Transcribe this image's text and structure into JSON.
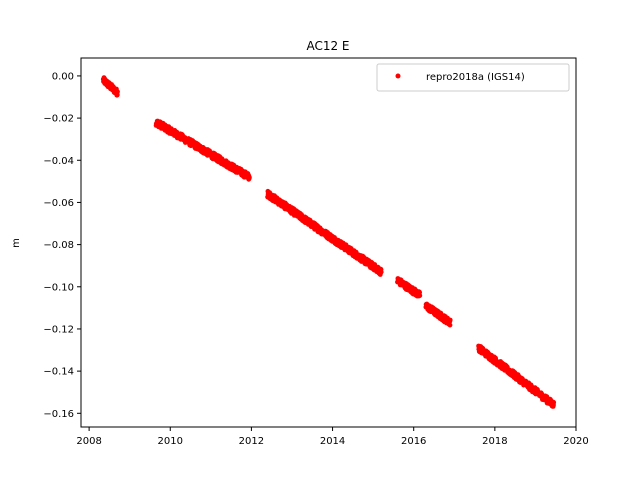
{
  "chart_data": {
    "type": "scatter",
    "title": "AC12 E",
    "xlabel": "",
    "ylabel": "m",
    "xlim": [
      2007.8,
      2020.0
    ],
    "ylim": [
      -0.1665,
      0.0085
    ],
    "xticks": [
      2008,
      2010,
      2012,
      2014,
      2016,
      2018,
      2020
    ],
    "yticks": [
      0.0,
      -0.02,
      -0.04,
      -0.06,
      -0.08,
      -0.1,
      -0.12,
      -0.14,
      -0.16
    ],
    "xtick_labels": [
      "2008",
      "2010",
      "2012",
      "2014",
      "2016",
      "2018",
      "2020"
    ],
    "ytick_labels": [
      "0.00",
      "−0.02",
      "−0.04",
      "−0.06",
      "−0.08",
      "−0.10",
      "−0.12",
      "−0.14",
      "−0.16"
    ],
    "grid": false,
    "legend": {
      "position": "top-right"
    },
    "series": [
      {
        "name": "repro2018a (IGS14)",
        "color": "#ff0000",
        "marker": "circle",
        "segments": [
          {
            "x_start": 2008.35,
            "x_end": 2008.7,
            "y_start": -0.002,
            "y_end": -0.008
          },
          {
            "x_start": 2009.65,
            "x_end": 2011.95,
            "y_start": -0.022,
            "y_end": -0.048
          },
          {
            "x_start": 2012.4,
            "x_end": 2015.2,
            "y_start": -0.056,
            "y_end": -0.093
          },
          {
            "x_start": 2015.6,
            "x_end": 2016.15,
            "y_start": -0.097,
            "y_end": -0.104
          },
          {
            "x_start": 2016.3,
            "x_end": 2016.9,
            "y_start": -0.109,
            "y_end": -0.117
          },
          {
            "x_start": 2017.6,
            "x_end": 2019.45,
            "y_start": -0.129,
            "y_end": -0.156
          }
        ]
      }
    ]
  }
}
